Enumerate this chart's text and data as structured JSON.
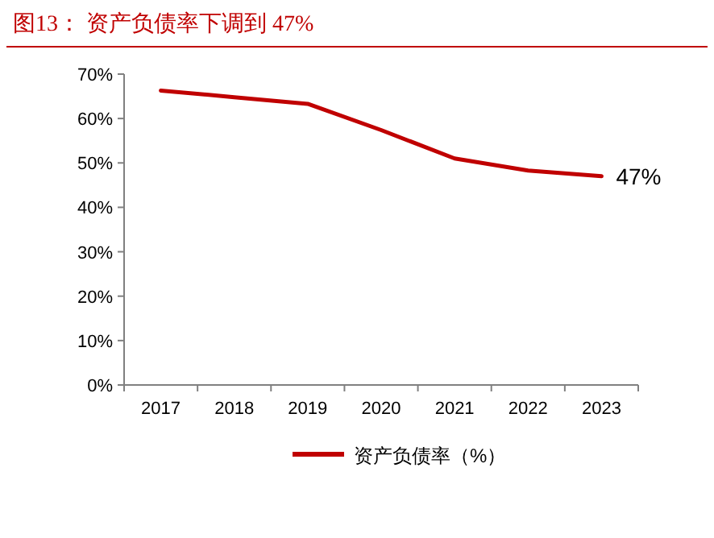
{
  "chart_data": {
    "type": "line",
    "title": "图13：  资产负债率下调到 47%",
    "categories": [
      "2017",
      "2018",
      "2019",
      "2020",
      "2021",
      "2022",
      "2023"
    ],
    "series": [
      {
        "name": "资产负债率（%）",
        "color": "#c00000",
        "values": [
          66.3,
          64.8,
          63.3,
          57.4,
          51.0,
          48.3,
          47
        ]
      }
    ],
    "ylim": [
      0,
      70
    ],
    "yticks": [
      {
        "value": 0,
        "label": "0%"
      },
      {
        "value": 10,
        "label": "10%"
      },
      {
        "value": 20,
        "label": "20%"
      },
      {
        "value": 30,
        "label": "30%"
      },
      {
        "value": 40,
        "label": "40%"
      },
      {
        "value": 50,
        "label": "50%"
      },
      {
        "value": 60,
        "label": "60%"
      },
      {
        "value": 70,
        "label": "70%"
      }
    ],
    "annotations": [
      {
        "text": "47%",
        "x": "2023",
        "y": 47
      }
    ],
    "grid": false,
    "legend": "bottom",
    "marker": "none",
    "line_style": "solid"
  }
}
